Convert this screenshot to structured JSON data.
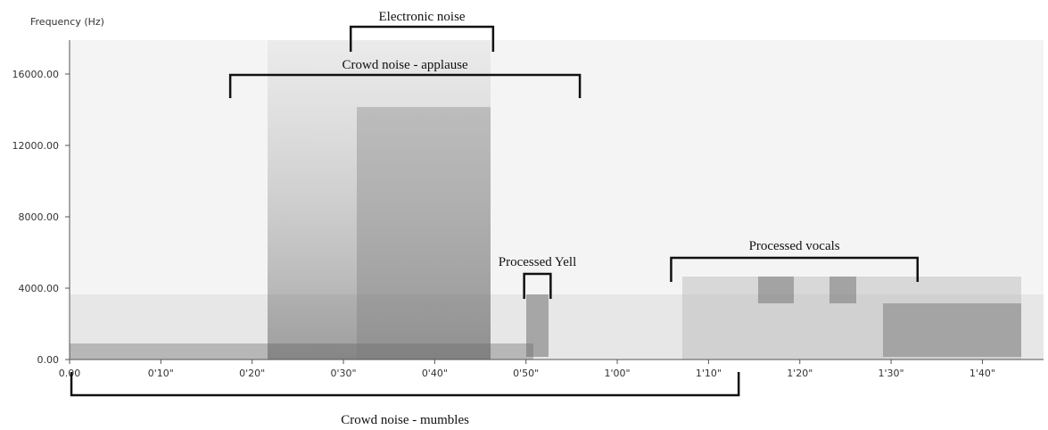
{
  "chart_data": {
    "type": "spectrogram",
    "y_label": "Frequency (Hz)",
    "xlim": [
      0,
      106.7
    ],
    "ylim": [
      0,
      17900
    ],
    "yticks": [
      {
        "value": 0,
        "label": "0.00"
      },
      {
        "value": 4000,
        "label": "4000.00"
      },
      {
        "value": 8000,
        "label": "8000.00"
      },
      {
        "value": 12000,
        "label": "12000.00"
      },
      {
        "value": 16000,
        "label": "16000.00"
      }
    ],
    "xticks": [
      {
        "value": 0,
        "label": "0.00"
      },
      {
        "value": 10,
        "label": "0'10\""
      },
      {
        "value": 20,
        "label": "0'20\""
      },
      {
        "value": 30,
        "label": "0'30\""
      },
      {
        "value": 40,
        "label": "0'40\""
      },
      {
        "value": 50,
        "label": "0'50\""
      },
      {
        "value": 60,
        "label": "1'00\""
      },
      {
        "value": 70,
        "label": "1'10\""
      },
      {
        "value": 80,
        "label": "1'20\""
      },
      {
        "value": 90,
        "label": "1'30\""
      },
      {
        "value": 100,
        "label": "1'40\""
      }
    ],
    "annotations": [
      {
        "text": "Electronic noise",
        "x": [
          30.8,
          46.4
        ]
      },
      {
        "text": "Crowd noise - applause",
        "x": [
          17.6,
          55.9
        ]
      },
      {
        "text": "Processed Yell",
        "x": [
          49.8,
          52.7
        ]
      },
      {
        "text": "Processed vocals",
        "x": [
          65.9,
          92.9
        ]
      },
      {
        "text": "Crowd noise - mumbles",
        "x": [
          0.2,
          73.3
        ]
      }
    ]
  }
}
